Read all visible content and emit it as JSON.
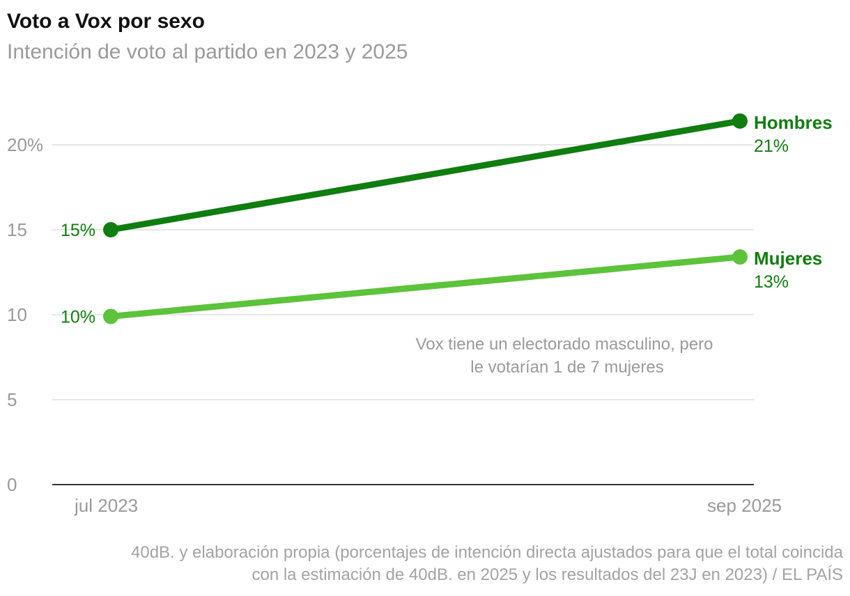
{
  "header": {
    "title": "Voto a Vox por sexo",
    "subtitle": "Intención de voto al partido en 2023 y 2025"
  },
  "chart_data": {
    "type": "line",
    "title": "Voto a Vox por sexo",
    "subtitle": "Intención de voto al partido en 2023 y 2025",
    "x": [
      "jul 2023",
      "sep 2025"
    ],
    "ylim": [
      0,
      22
    ],
    "yticks": [
      0,
      5,
      10,
      15,
      20
    ],
    "ytick_labels": [
      "0",
      "5",
      "10",
      "15",
      "20%"
    ],
    "grid": true,
    "series": [
      {
        "name": "Hombres",
        "values": [
          15,
          21.4
        ],
        "start_label": "15%",
        "end_label": "21%",
        "color": "#0f7d0f",
        "label_color": "#0f7d0f"
      },
      {
        "name": "Mujeres",
        "values": [
          9.9,
          13.4
        ],
        "start_label": "10%",
        "end_label": "13%",
        "color": "#5cc33a",
        "label_color": "#0f7d0f"
      }
    ],
    "annotation": [
      "Vox tiene un electorado masculino, pero",
      "le votarían 1 de 7 mujeres"
    ]
  },
  "footer": {
    "source_line1": "40dB. y elaboración propia (porcentajes de intención directa ajustados para que el total coincida",
    "source_line2": "con la estimación de 40dB. en 2025 y los resultados del 23J en 2023) / EL PAÍS"
  },
  "colors": {
    "dark_green": "#0f7d0f",
    "light_green": "#5cc33a",
    "grid": "#dddddd",
    "axis": "#333333",
    "muted_text": "#9a9a9a"
  }
}
